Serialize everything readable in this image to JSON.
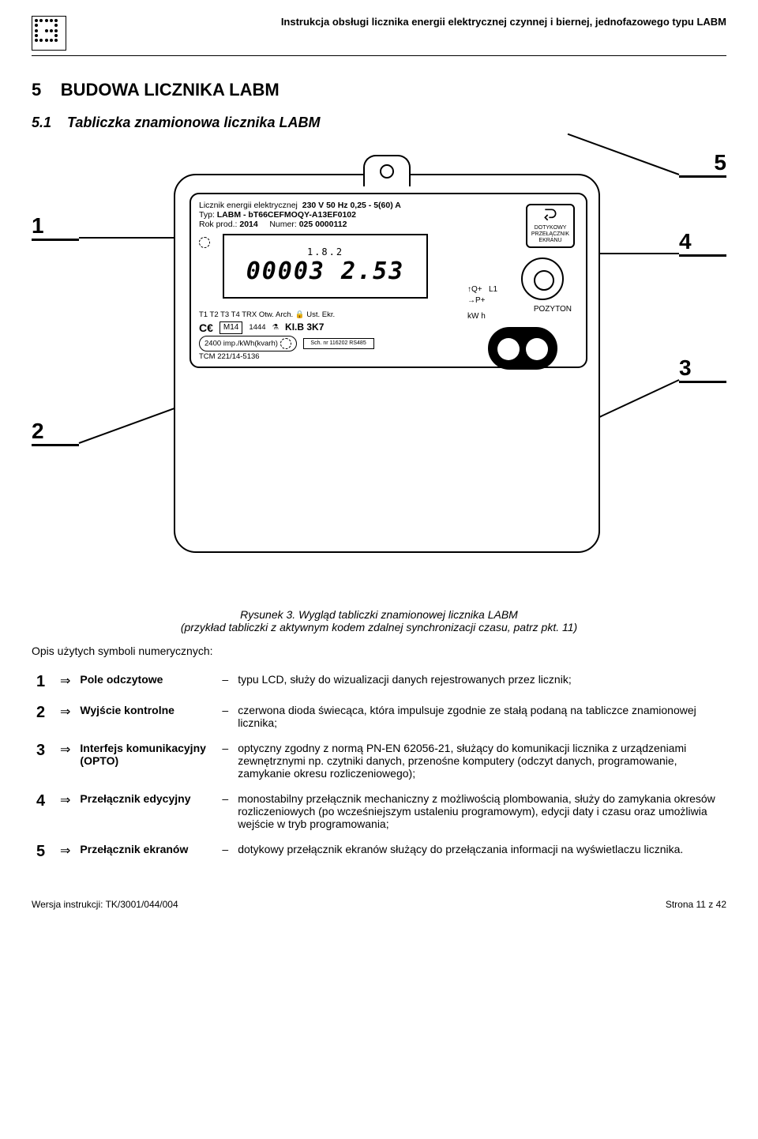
{
  "header": {
    "title": "Instrukcja obsługi licznika energii elektrycznej czynnej i biernej, jednofazowego typu LABM"
  },
  "section": {
    "number": "5",
    "title": "BUDOWA LICZNIKA LABM"
  },
  "subsection": {
    "number": "5.1",
    "title": "Tabliczka znamionowa licznika LABM"
  },
  "meter_plate": {
    "line1_label": "Licznik energii elektrycznej",
    "line1_spec": "230 V 50 Hz 0,25 - 5(60) A",
    "type_label": "Typ:",
    "type_value": "LABM - bT66CEFMOQY-A13EF0102",
    "year_label": "Rok prod.:",
    "year_value": "2014",
    "serial_label": "Numer:",
    "serial_value": "025 0000112",
    "screen_switch_label": "DOTYKOWY PRZEŁĄCZNIK EKRANU",
    "lcd_top": "1.8.2",
    "lcd_side_arrows": "Q+  L1\nP+",
    "lcd_unit": "kW h",
    "lcd_main": "00003 2.53",
    "t_row": "T1  T2  T3  T4  TRX        Otw. Arch. 🔒 Ust. Ekr.",
    "pozyton": "POZYTON",
    "ce_row_m": "M14",
    "ce_row_num": "1444",
    "ce_row_klb": "KI.B  3K7",
    "imp": "2400 imp./kWh(kvarh)",
    "sch": "Sch. nr 116202   RS485",
    "tcm": "TCM 221/14-5136"
  },
  "callouts": {
    "n1": "1",
    "n2": "2",
    "n3": "3",
    "n4": "4",
    "n5": "5"
  },
  "caption": {
    "line1": "Rysunek 3. Wygląd tabliczki znamionowej licznika LABM",
    "line2": "(przykład tabliczki z aktywnym kodem zdalnej synchronizacji czasu, patrz pkt. 11)"
  },
  "legend_intro": "Opis użytych symboli numerycznych:",
  "legend": [
    {
      "n": "1",
      "term": "Pole odczytowe",
      "desc": "typu LCD, służy do wizualizacji danych rejestrowanych przez licznik;"
    },
    {
      "n": "2",
      "term": "Wyjście kontrolne",
      "desc": "czerwona dioda świecąca, która impulsuje zgodnie ze stałą podaną na tabliczce znamionowej licznika;"
    },
    {
      "n": "3",
      "term": "Interfejs komunikacyjny (OPTO)",
      "desc": "optyczny zgodny z normą PN-EN 62056-21, służący do komunikacji licznika z urządzeniami zewnętrznymi np. czytniki danych, przenośne komputery (odczyt danych, programowanie, zamykanie okresu rozliczeniowego);"
    },
    {
      "n": "4",
      "term": "Przełącznik edycyjny",
      "desc": "monostabilny przełącznik mechaniczny z możliwością plombowania, służy do zamykania okresów rozliczeniowych (po wcześniejszym ustaleniu programowym), edycji daty i czasu oraz umożliwia wejście w tryb programowania;"
    },
    {
      "n": "5",
      "term": "Przełącznik ekranów",
      "desc": "dotykowy przełącznik ekranów służący do przełączania informacji na wyświetlaczu licznika."
    }
  ],
  "footer": {
    "left": "Wersja instrukcji: TK/3001/044/004",
    "right": "Strona 11 z 42"
  }
}
